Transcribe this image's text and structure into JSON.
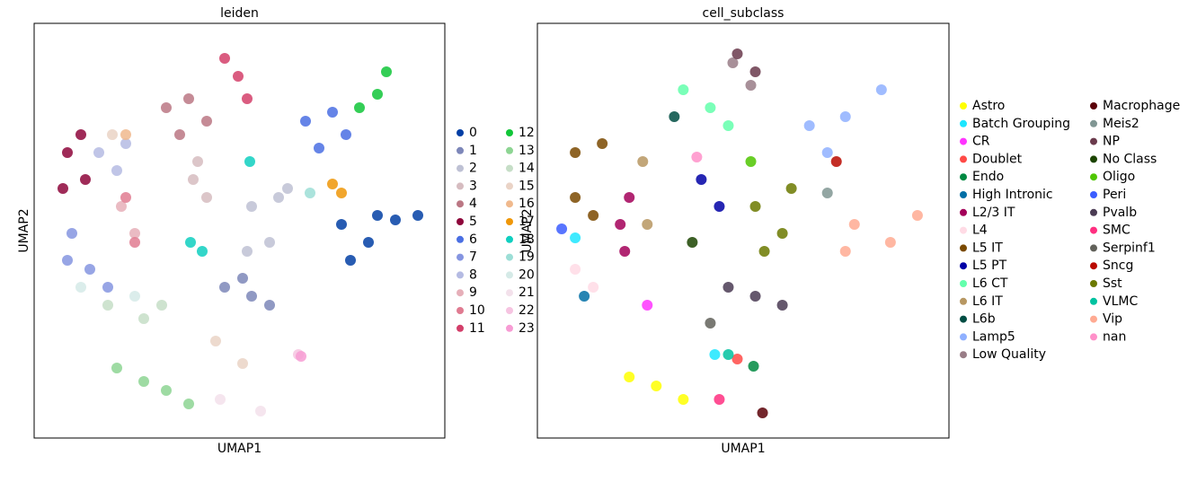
{
  "chart_data": [
    {
      "type": "scatter",
      "title": "leiden",
      "xlabel": "UMAP1",
      "ylabel": "UMAP2",
      "xlim": [
        0,
        457
      ],
      "ylim": [
        0,
        462
      ],
      "series": [
        {
          "name": "0",
          "color": "#023fa5",
          "x": [
            342,
            372,
            402,
            427,
            352,
            382
          ],
          "y": [
            238,
            218,
            243,
            248,
            198,
            248
          ]
        },
        {
          "name": "1",
          "color": "#7d87b9",
          "x": [
            212,
            242,
            262,
            232
          ],
          "y": [
            168,
            158,
            148,
            178
          ]
        },
        {
          "name": "2",
          "color": "#bec1d4",
          "x": [
            242,
            272,
            262,
            282,
            237
          ],
          "y": [
            258,
            268,
            218,
            278,
            208
          ]
        },
        {
          "name": "3",
          "color": "#d6bcc0",
          "x": [
            177,
            192,
            182
          ],
          "y": [
            288,
            268,
            308
          ]
        },
        {
          "name": "4",
          "color": "#bb7784",
          "x": [
            147,
            172,
            192,
            162
          ],
          "y": [
            368,
            378,
            353,
            338
          ]
        },
        {
          "name": "5",
          "color": "#8e063b",
          "x": [
            37,
            52,
            32,
            57
          ],
          "y": [
            318,
            338,
            278,
            288
          ]
        },
        {
          "name": "6",
          "color": "#4a6fe3",
          "x": [
            302,
            332,
            317,
            347
          ],
          "y": [
            353,
            363,
            323,
            338
          ]
        },
        {
          "name": "7",
          "color": "#8595e1",
          "x": [
            42,
            62,
            82,
            37
          ],
          "y": [
            228,
            188,
            168,
            198
          ]
        },
        {
          "name": "8",
          "color": "#b5bbe3",
          "x": [
            72,
            92,
            102
          ],
          "y": [
            318,
            298,
            328
          ]
        },
        {
          "name": "9",
          "color": "#e6afb9",
          "x": [
            97,
            112
          ],
          "y": [
            258,
            228
          ]
        },
        {
          "name": "10",
          "color": "#e07b91",
          "x": [
            102,
            112
          ],
          "y": [
            268,
            218
          ]
        },
        {
          "name": "11",
          "color": "#d33f6a",
          "x": [
            212,
            227,
            237
          ],
          "y": [
            423,
            403,
            378
          ]
        },
        {
          "name": "12",
          "color": "#11c638",
          "x": [
            362,
            382,
            392
          ],
          "y": [
            368,
            383,
            408
          ]
        },
        {
          "name": "13",
          "color": "#8dd593",
          "x": [
            92,
            122,
            147,
            172
          ],
          "y": [
            78,
            63,
            53,
            38
          ]
        },
        {
          "name": "14",
          "color": "#c6dec7",
          "x": [
            82,
            122,
            142
          ],
          "y": [
            148,
            133,
            148
          ]
        },
        {
          "name": "15",
          "color": "#ead3c6",
          "x": [
            202,
            232,
            87
          ],
          "y": [
            108,
            83,
            338
          ]
        },
        {
          "name": "16",
          "color": "#f0b98d",
          "x": [
            102
          ],
          "y": [
            338
          ]
        },
        {
          "name": "17",
          "color": "#ef9708",
          "x": [
            332,
            342
          ],
          "y": [
            283,
            273
          ]
        },
        {
          "name": "18",
          "color": "#0fcfc0",
          "x": [
            174,
            187,
            240
          ],
          "y": [
            218,
            208,
            308
          ]
        },
        {
          "name": "19",
          "color": "#9cded6",
          "x": [
            307
          ],
          "y": [
            273
          ]
        },
        {
          "name": "20",
          "color": "#d5eae7",
          "x": [
            52,
            112
          ],
          "y": [
            168,
            158
          ]
        },
        {
          "name": "21",
          "color": "#f3e1eb",
          "x": [
            207,
            252
          ],
          "y": [
            43,
            30
          ]
        },
        {
          "name": "22",
          "color": "#f6c4e1",
          "x": [
            294
          ],
          "y": [
            93
          ]
        },
        {
          "name": "23",
          "color": "#f79cd4",
          "x": [
            297
          ],
          "y": [
            91
          ]
        }
      ]
    },
    {
      "type": "scatter",
      "title": "cell_subclass",
      "xlabel": "UMAP1",
      "ylabel": "UMAP2",
      "xlim": [
        0,
        457
      ],
      "ylim": [
        0,
        462
      ],
      "series": [
        {
          "name": "Astro",
          "color": "#ffff00",
          "x": [
            102,
            132,
            162
          ],
          "y": [
            68,
            58,
            43
          ]
        },
        {
          "name": "Batch Grouping",
          "color": "#1ce6ff",
          "x": [
            197,
            42
          ],
          "y": [
            93,
            223
          ]
        },
        {
          "name": "CR",
          "color": "#ff34ff",
          "x": [
            122
          ],
          "y": [
            148
          ]
        },
        {
          "name": "Doublet",
          "color": "#ff4a46",
          "x": [
            222
          ],
          "y": [
            88
          ]
        },
        {
          "name": "Endo",
          "color": "#008941",
          "x": [
            240
          ],
          "y": [
            80
          ]
        },
        {
          "name": "High Intronic",
          "color": "#006fa6",
          "x": [
            52
          ],
          "y": [
            158
          ]
        },
        {
          "name": "L2/3 IT",
          "color": "#a30059",
          "x": [
            92,
            102,
            97
          ],
          "y": [
            238,
            268,
            208
          ]
        },
        {
          "name": "L4",
          "color": "#ffdbe5",
          "x": [
            42,
            62
          ],
          "y": [
            188,
            168
          ]
        },
        {
          "name": "L5 IT",
          "color": "#7a4900",
          "x": [
            42,
            72,
            42,
            62
          ],
          "y": [
            318,
            328,
            268,
            248
          ]
        },
        {
          "name": "L5 PT",
          "color": "#0000a6",
          "x": [
            182,
            202
          ],
          "y": [
            288,
            258
          ]
        },
        {
          "name": "L6 CT",
          "color": "#63ffac",
          "x": [
            162,
            192,
            212
          ],
          "y": [
            388,
            368,
            348
          ]
        },
        {
          "name": "L6 IT",
          "color": "#b79762",
          "x": [
            117,
            122
          ],
          "y": [
            308,
            238
          ]
        },
        {
          "name": "L6b",
          "color": "#004d43",
          "x": [
            152
          ],
          "y": [
            358
          ]
        },
        {
          "name": "Lamp5",
          "color": "#8fb0ff",
          "x": [
            302,
            342,
            382,
            322
          ],
          "y": [
            348,
            358,
            388,
            318
          ]
        },
        {
          "name": "Low Quality",
          "color": "#997d87",
          "x": [
            217,
            237
          ],
          "y": [
            418,
            393
          ]
        },
        {
          "name": "Macrophage",
          "color": "#5a0007",
          "x": [
            250
          ],
          "y": [
            28
          ]
        },
        {
          "name": "Meis2",
          "color": "#809693",
          "x": [
            322
          ],
          "y": [
            273
          ]
        },
        {
          "name": "NP",
          "color": "#6a3a4c",
          "x": [
            222,
            242
          ],
          "y": [
            428,
            408
          ]
        },
        {
          "name": "No Class",
          "color": "#1b4400",
          "x": [
            172
          ],
          "y": [
            218
          ]
        },
        {
          "name": "Oligo",
          "color": "#4fc601",
          "x": [
            237
          ],
          "y": [
            308
          ]
        },
        {
          "name": "Peri",
          "color": "#3b5dff",
          "x": [
            27
          ],
          "y": [
            233
          ]
        },
        {
          "name": "Pvalb",
          "color": "#4a3b53",
          "x": [
            212,
            242,
            272
          ],
          "y": [
            168,
            158,
            148
          ]
        },
        {
          "name": "SMC",
          "color": "#ff2f80",
          "x": [
            202
          ],
          "y": [
            43
          ]
        },
        {
          "name": "Serpinf1",
          "color": "#61615a",
          "x": [
            192
          ],
          "y": [
            128
          ]
        },
        {
          "name": "Sncg",
          "color": "#ba0900",
          "x": [
            332
          ],
          "y": [
            308
          ]
        },
        {
          "name": "Sst",
          "color": "#6b7900",
          "x": [
            242,
            272,
            252,
            282
          ],
          "y": [
            258,
            228,
            208,
            278
          ]
        },
        {
          "name": "VLMC",
          "color": "#00c2a0",
          "x": [
            212
          ],
          "y": [
            93
          ]
        },
        {
          "name": "Vip",
          "color": "#ffaa92",
          "x": [
            352,
            392,
            422,
            342
          ],
          "y": [
            238,
            218,
            248,
            208
          ]
        },
        {
          "name": "nan",
          "color": "#ff90c9",
          "x": [
            177
          ],
          "y": [
            313
          ]
        }
      ]
    }
  ]
}
